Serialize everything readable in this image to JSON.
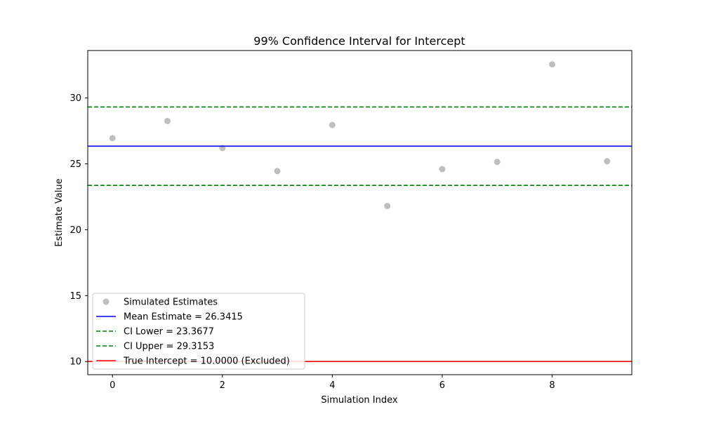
{
  "chart_data": {
    "type": "scatter",
    "title": "99% Confidence Interval for Intercept",
    "xlabel": "Simulation Index",
    "ylabel": "Estimate Value",
    "xlim": [
      -0.45,
      9.45
    ],
    "ylim": [
      9.0,
      33.6
    ],
    "xticks": [
      0,
      2,
      4,
      6,
      8
    ],
    "yticks": [
      10,
      15,
      20,
      25,
      30
    ],
    "grid": false,
    "legend_position": "lower-left",
    "series": [
      {
        "name": "Simulated Estimates",
        "kind": "scatter",
        "color": "#a9a9a9",
        "x": [
          0,
          1,
          2,
          3,
          4,
          5,
          6,
          7,
          8,
          9
        ],
        "y": [
          26.95,
          28.25,
          26.2,
          24.45,
          27.95,
          21.8,
          24.6,
          25.15,
          32.55,
          25.2
        ]
      }
    ],
    "hlines": [
      {
        "name": "Mean Estimate = 26.3415",
        "value": 26.3415,
        "color": "#0000ff",
        "style": "solid"
      },
      {
        "name": "CI Lower = 23.3677",
        "value": 23.3677,
        "color": "#008000",
        "style": "dashed"
      },
      {
        "name": "CI Upper = 29.3153",
        "value": 29.3153,
        "color": "#008000",
        "style": "dashed"
      },
      {
        "name": "True Intercept = 10.0000 (Excluded)",
        "value": 10.0,
        "color": "#ff0000",
        "style": "solid"
      }
    ]
  }
}
